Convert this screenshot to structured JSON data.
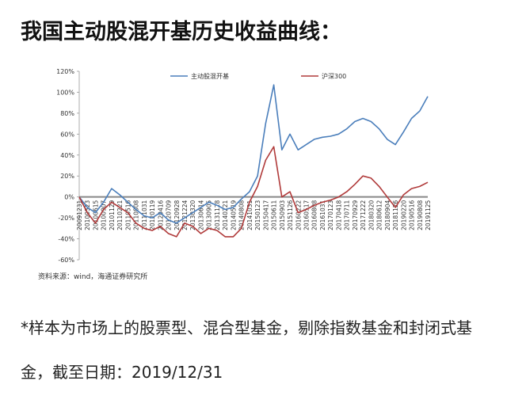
{
  "title": "我国主动股混开基历史收益曲线：",
  "chart_data": {
    "type": "line",
    "categories": [
      "20091231",
      "20100323",
      "20100615",
      "20100907",
      "20101129",
      "20110221",
      "20110516",
      "20110808",
      "20111031",
      "20120119",
      "20120416",
      "20120709",
      "20120928",
      "20121224",
      "20130320",
      "20130614",
      "20130905",
      "20131128",
      "20140221",
      "20140519",
      "20140808",
      "20141031",
      "20150123",
      "20150417",
      "20150611",
      "20150903",
      "20151126",
      "20160222",
      "20160517",
      "20160808",
      "20161031",
      "20170123",
      "20170418",
      "20170711",
      "20170929",
      "20171222",
      "20180320",
      "20180612",
      "20180904",
      "20181126",
      "20190220",
      "20190516",
      "20190808",
      "20191125"
    ],
    "series": [
      {
        "name": "主动股混开基",
        "color": "#4a7ebb",
        "values": [
          0,
          -10,
          -15,
          -5,
          8,
          2,
          -5,
          -12,
          -18,
          -20,
          -15,
          -22,
          -25,
          -20,
          -15,
          -10,
          -5,
          -8,
          -12,
          -10,
          -2,
          5,
          20,
          70,
          107,
          45,
          60,
          45,
          50,
          55,
          57,
          58,
          60,
          65,
          72,
          75,
          72,
          65,
          55,
          50,
          62,
          75,
          82,
          96
        ]
      },
      {
        "name": "沪深300",
        "color": "#b03a3a",
        "values": [
          0,
          -15,
          -25,
          -12,
          -5,
          -10,
          -15,
          -25,
          -30,
          -32,
          -28,
          -35,
          -38,
          -25,
          -28,
          -35,
          -30,
          -32,
          -38,
          -38,
          -30,
          -5,
          10,
          35,
          48,
          0,
          5,
          -15,
          -12,
          -8,
          -5,
          -3,
          0,
          5,
          12,
          20,
          18,
          10,
          0,
          -10,
          2,
          8,
          10,
          14
        ]
      }
    ],
    "ylim": [
      -60,
      120
    ],
    "yticks": [
      {
        "value": -60,
        "label": "-60%"
      },
      {
        "value": -40,
        "label": "-40%"
      },
      {
        "value": -20,
        "label": "-20%"
      },
      {
        "value": 0,
        "label": "0%"
      },
      {
        "value": 20,
        "label": "20%"
      },
      {
        "value": 40,
        "label": "40%"
      },
      {
        "value": 60,
        "label": "60%"
      },
      {
        "value": 80,
        "label": "80%"
      },
      {
        "value": 100,
        "label": "100%"
      },
      {
        "value": 120,
        "label": "120%"
      }
    ],
    "legend": "top",
    "source": "资料来源：wind，海通证券研究所"
  },
  "note": "*样本为市场上的股票型、混合型基金，剔除指数基金和封闭式基金，截至日期：2019/12/31"
}
